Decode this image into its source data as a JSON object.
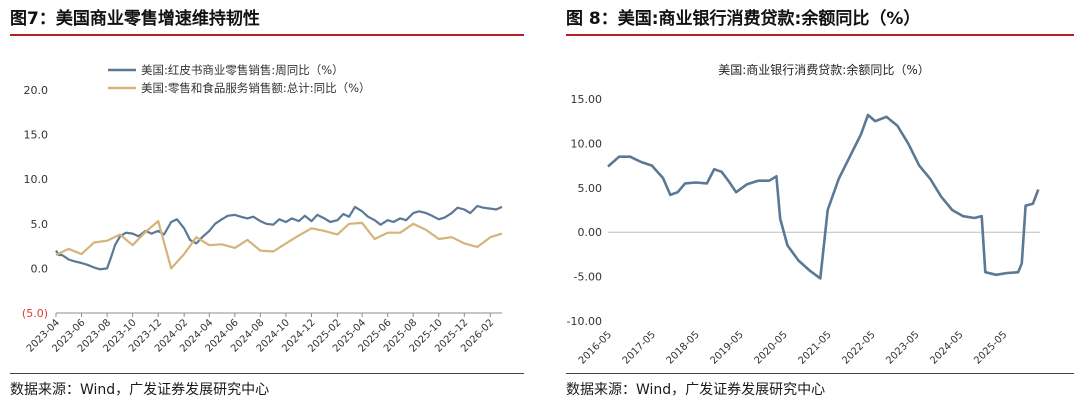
{
  "left": {
    "title": "图7：美国商业零售增速维持韧性",
    "source": "数据来源：Wind，广发证券发展研究中心",
    "colors": {
      "series1": "#5b7895",
      "series2": "#d4b47a",
      "negative_tick": "#e03b30"
    },
    "chart_data": {
      "type": "line",
      "title": "",
      "xlabel": "",
      "ylabel": "",
      "ylim": [
        -5,
        20
      ],
      "yticks": [
        "20.0",
        "15.0",
        "10.0",
        "5.0",
        "0.0",
        "(5.0)"
      ],
      "xlim": [
        "2023-04",
        "2026-03"
      ],
      "xticks": [
        "2023-04",
        "2023-06",
        "2023-08",
        "2023-10",
        "2023-12",
        "2024-02",
        "2024-04",
        "2024-06",
        "2024-08",
        "2024-10",
        "2024-12",
        "2025-02",
        "2025-04",
        "2025-06",
        "2025-08",
        "2025-10",
        "2025-12",
        "2026-02"
      ],
      "grid": false,
      "legend": "top-left",
      "series": [
        {
          "name": "美国:红皮书商业零售销售:周同比（%）",
          "points": [
            [
              "2023-04-01",
              2.0
            ],
            [
              "2023-04-08",
              1.5
            ],
            [
              "2023-04-15",
              1.5
            ],
            [
              "2023-04-22",
              1.3
            ],
            [
              "2023-05-01",
              1.0
            ],
            [
              "2023-05-15",
              0.8
            ],
            [
              "2023-06-01",
              0.6
            ],
            [
              "2023-06-15",
              0.4
            ],
            [
              "2023-07-01",
              0.1
            ],
            [
              "2023-07-15",
              -0.1
            ],
            [
              "2023-08-01",
              0.0
            ],
            [
              "2023-08-10",
              1.2
            ],
            [
              "2023-08-20",
              2.6
            ],
            [
              "2023-09-01",
              3.6
            ],
            [
              "2023-09-15",
              4.0
            ],
            [
              "2023-10-01",
              3.9
            ],
            [
              "2023-10-15",
              3.6
            ],
            [
              "2023-11-01",
              4.2
            ],
            [
              "2023-11-15",
              3.9
            ],
            [
              "2023-12-01",
              4.2
            ],
            [
              "2023-12-15",
              3.8
            ],
            [
              "2024-01-01",
              5.2
            ],
            [
              "2024-01-15",
              5.5
            ],
            [
              "2024-02-01",
              4.5
            ],
            [
              "2024-02-15",
              3.2
            ],
            [
              "2024-03-01",
              2.8
            ],
            [
              "2024-03-15",
              3.5
            ],
            [
              "2024-04-01",
              4.2
            ],
            [
              "2024-04-15",
              5.0
            ],
            [
              "2024-05-01",
              5.5
            ],
            [
              "2024-05-15",
              5.9
            ],
            [
              "2024-06-01",
              6.0
            ],
            [
              "2024-06-15",
              5.8
            ],
            [
              "2024-07-01",
              5.6
            ],
            [
              "2024-07-15",
              5.8
            ],
            [
              "2024-08-01",
              5.3
            ],
            [
              "2024-08-15",
              5.0
            ],
            [
              "2024-09-01",
              4.9
            ],
            [
              "2024-09-15",
              5.5
            ],
            [
              "2024-10-01",
              5.2
            ],
            [
              "2024-10-15",
              5.6
            ],
            [
              "2024-11-01",
              5.3
            ],
            [
              "2024-11-15",
              5.9
            ],
            [
              "2024-12-01",
              5.3
            ],
            [
              "2024-12-15",
              6.0
            ],
            [
              "2025-01-01",
              5.6
            ],
            [
              "2025-01-15",
              5.2
            ],
            [
              "2025-02-01",
              5.4
            ],
            [
              "2025-02-15",
              6.1
            ],
            [
              "2025-03-01",
              5.8
            ],
            [
              "2025-03-15",
              6.9
            ],
            [
              "2025-04-01",
              6.4
            ],
            [
              "2025-04-15",
              5.8
            ],
            [
              "2025-05-01",
              5.4
            ],
            [
              "2025-05-15",
              4.9
            ],
            [
              "2025-06-01",
              5.4
            ],
            [
              "2025-06-15",
              5.2
            ],
            [
              "2025-07-01",
              5.6
            ],
            [
              "2025-07-15",
              5.4
            ],
            [
              "2025-08-01",
              6.2
            ],
            [
              "2025-08-15",
              6.4
            ],
            [
              "2025-09-01",
              6.2
            ],
            [
              "2025-09-15",
              5.9
            ],
            [
              "2025-10-01",
              5.5
            ],
            [
              "2025-10-15",
              5.7
            ],
            [
              "2025-11-01",
              6.2
            ],
            [
              "2025-11-15",
              6.8
            ],
            [
              "2025-12-01",
              6.6
            ],
            [
              "2025-12-15",
              6.2
            ],
            [
              "2026-01-01",
              7.0
            ],
            [
              "2026-01-15",
              6.8
            ],
            [
              "2026-02-01",
              6.7
            ],
            [
              "2026-02-15",
              6.6
            ],
            [
              "2026-03-01",
              6.9
            ]
          ]
        },
        {
          "name": "美国:零售和食品服务销售额:总计:同比（%）",
          "points": [
            [
              "2023-04-01",
              1.5
            ],
            [
              "2023-05-01",
              2.2
            ],
            [
              "2023-06-01",
              1.6
            ],
            [
              "2023-07-01",
              2.9
            ],
            [
              "2023-08-01",
              3.1
            ],
            [
              "2023-09-01",
              3.8
            ],
            [
              "2023-10-01",
              2.6
            ],
            [
              "2023-11-01",
              4.1
            ],
            [
              "2023-12-01",
              5.3
            ],
            [
              "2024-01-01",
              0.0
            ],
            [
              "2024-02-01",
              1.6
            ],
            [
              "2024-03-01",
              3.5
            ],
            [
              "2024-04-01",
              2.6
            ],
            [
              "2024-05-01",
              2.7
            ],
            [
              "2024-06-01",
              2.3
            ],
            [
              "2024-07-01",
              3.2
            ],
            [
              "2024-08-01",
              2.0
            ],
            [
              "2024-09-01",
              1.9
            ],
            [
              "2024-10-01",
              2.8
            ],
            [
              "2024-11-01",
              3.7
            ],
            [
              "2024-12-01",
              4.5
            ],
            [
              "2025-01-01",
              4.2
            ],
            [
              "2025-02-01",
              3.8
            ],
            [
              "2025-03-01",
              5.0
            ],
            [
              "2025-04-01",
              5.1
            ],
            [
              "2025-05-01",
              3.3
            ],
            [
              "2025-06-01",
              4.0
            ],
            [
              "2025-07-01",
              4.0
            ],
            [
              "2025-08-01",
              5.0
            ],
            [
              "2025-09-01",
              4.3
            ],
            [
              "2025-10-01",
              3.3
            ],
            [
              "2025-11-01",
              3.5
            ],
            [
              "2025-12-01",
              2.8
            ],
            [
              "2026-01-01",
              2.4
            ],
            [
              "2026-02-01",
              3.5
            ],
            [
              "2026-03-01",
              3.9
            ]
          ]
        }
      ]
    }
  },
  "right": {
    "title": "图 8：美国:商业银行消费贷款:余额同比（%）",
    "source": "数据来源：Wind，广发证券发展研究中心",
    "colors": {
      "series": "#5b7895"
    },
    "chart_data": {
      "type": "line",
      "title": "美国:商业银行消费贷款:余额同比（%）",
      "xlabel": "",
      "ylabel": "",
      "ylim": [
        -10,
        15
      ],
      "yticks": [
        "15.00",
        "10.00",
        "5.00",
        "0.00",
        "-5.00",
        "-10.00"
      ],
      "xlim": [
        "2016-05",
        "2026-03"
      ],
      "xticks": [
        "2016-05",
        "2017-05",
        "2018-05",
        "2019-05",
        "2020-05",
        "2021-05",
        "2022-05",
        "2023-05",
        "2024-05",
        "2025-05"
      ],
      "grid": false,
      "legend": "none",
      "series": [
        {
          "points": [
            [
              "2016-05-01",
              7.4
            ],
            [
              "2016-08-01",
              8.5
            ],
            [
              "2016-11-01",
              8.5
            ],
            [
              "2017-02-01",
              7.9
            ],
            [
              "2017-05-01",
              7.5
            ],
            [
              "2017-08-01",
              6.1
            ],
            [
              "2017-10-01",
              4.2
            ],
            [
              "2017-12-01",
              4.5
            ],
            [
              "2018-02-01",
              5.5
            ],
            [
              "2018-05-01",
              5.6
            ],
            [
              "2018-08-01",
              5.5
            ],
            [
              "2018-10-01",
              7.1
            ],
            [
              "2018-12-01",
              6.8
            ],
            [
              "2019-02-01",
              5.7
            ],
            [
              "2019-04-01",
              4.5
            ],
            [
              "2019-07-01",
              5.4
            ],
            [
              "2019-10-01",
              5.8
            ],
            [
              "2020-01-01",
              5.8
            ],
            [
              "2020-03-01",
              6.3
            ],
            [
              "2020-04-01",
              1.5
            ],
            [
              "2020-06-01",
              -1.5
            ],
            [
              "2020-09-01",
              -3.2
            ],
            [
              "2020-12-01",
              -4.3
            ],
            [
              "2021-03-01",
              -5.2
            ],
            [
              "2021-05-01",
              2.5
            ],
            [
              "2021-08-01",
              6.0
            ],
            [
              "2021-11-01",
              8.5
            ],
            [
              "2022-02-01",
              11.0
            ],
            [
              "2022-04-01",
              13.2
            ],
            [
              "2022-06-01",
              12.5
            ],
            [
              "2022-09-01",
              13.0
            ],
            [
              "2022-12-01",
              12.0
            ],
            [
              "2023-03-01",
              10.0
            ],
            [
              "2023-06-01",
              7.5
            ],
            [
              "2023-09-01",
              6.0
            ],
            [
              "2023-12-01",
              4.0
            ],
            [
              "2024-03-01",
              2.5
            ],
            [
              "2024-06-01",
              1.8
            ],
            [
              "2024-09-01",
              1.6
            ],
            [
              "2024-11-01",
              1.8
            ],
            [
              "2024-12-01",
              -4.5
            ],
            [
              "2025-03-01",
              -4.8
            ],
            [
              "2025-06-01",
              -4.6
            ],
            [
              "2025-09-01",
              -4.5
            ],
            [
              "2025-10-01",
              -3.5
            ],
            [
              "2025-11-01",
              3.0
            ],
            [
              "2026-01-01",
              3.2
            ],
            [
              "2026-02-15",
              4.8
            ]
          ]
        }
      ]
    }
  }
}
